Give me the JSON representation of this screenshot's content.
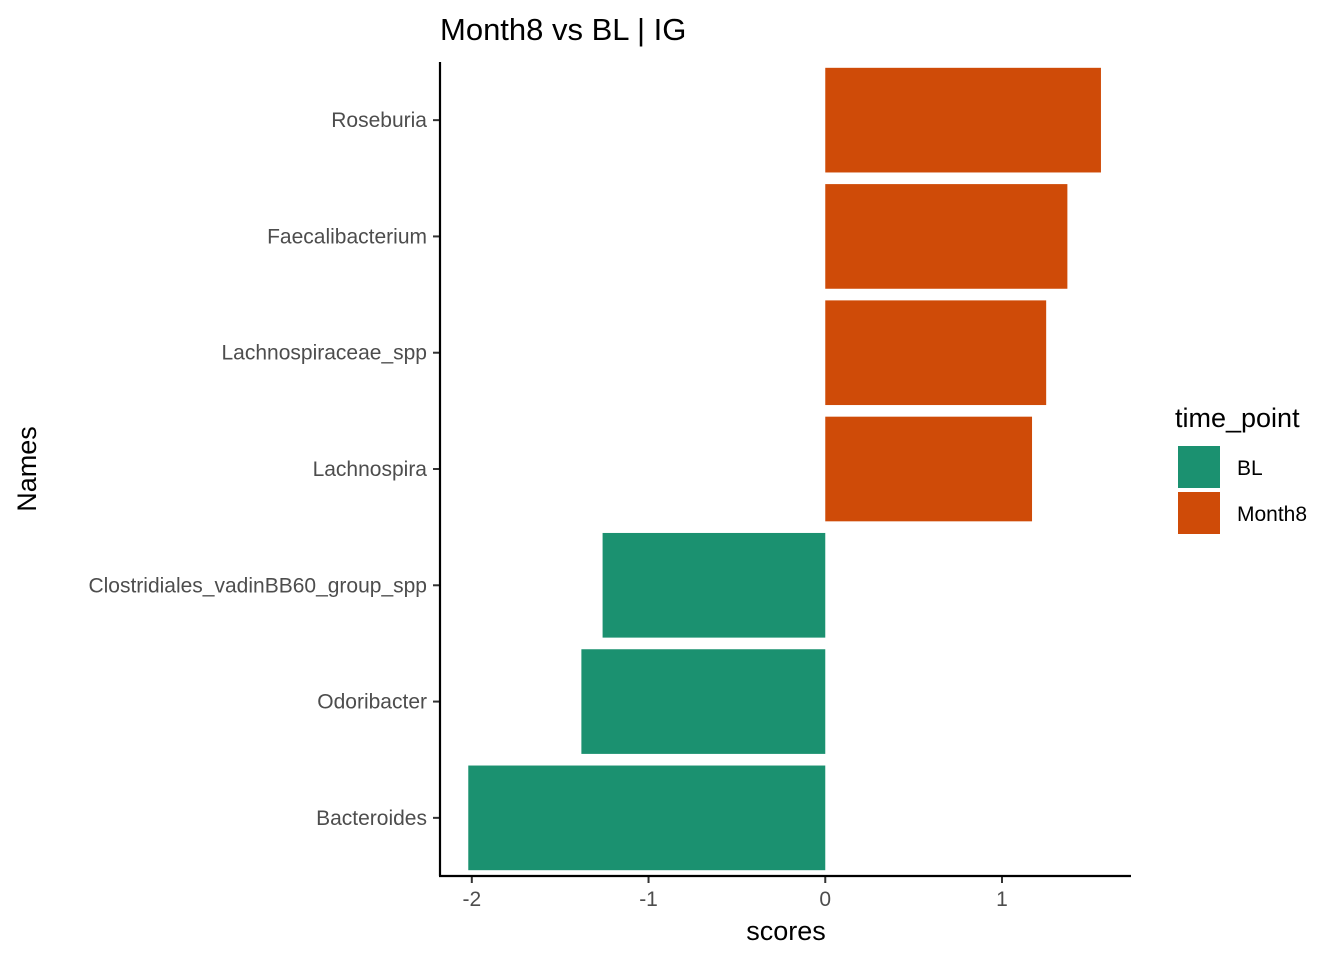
{
  "chart_data": {
    "type": "bar",
    "orientation": "horizontal",
    "title": "Month8 vs BL | IG",
    "xlabel": "scores",
    "ylabel": "Names",
    "xlim": [
      -2.18,
      1.73
    ],
    "xticks": [
      -2,
      -1,
      0,
      1
    ],
    "xtick_labels": [
      "-2",
      "-1",
      "0",
      "1"
    ],
    "grid": false,
    "legend": {
      "title": "time_point",
      "placement": "right",
      "entries": [
        {
          "label": "BL",
          "color": "#1b9170"
        },
        {
          "label": "Month8",
          "color": "#cf4b08"
        }
      ]
    },
    "categories": [
      "Roseburia",
      "Faecalibacterium",
      "Lachnospiraceae_spp",
      "Lachnospira",
      "Clostridiales_vadinBB60_group_spp",
      "Odoribacter",
      "Bacteroides"
    ],
    "values": [
      1.56,
      1.37,
      1.25,
      1.17,
      -1.26,
      -1.38,
      -2.02
    ],
    "groups": [
      "Month8",
      "Month8",
      "Month8",
      "Month8",
      "BL",
      "BL",
      "BL"
    ]
  }
}
